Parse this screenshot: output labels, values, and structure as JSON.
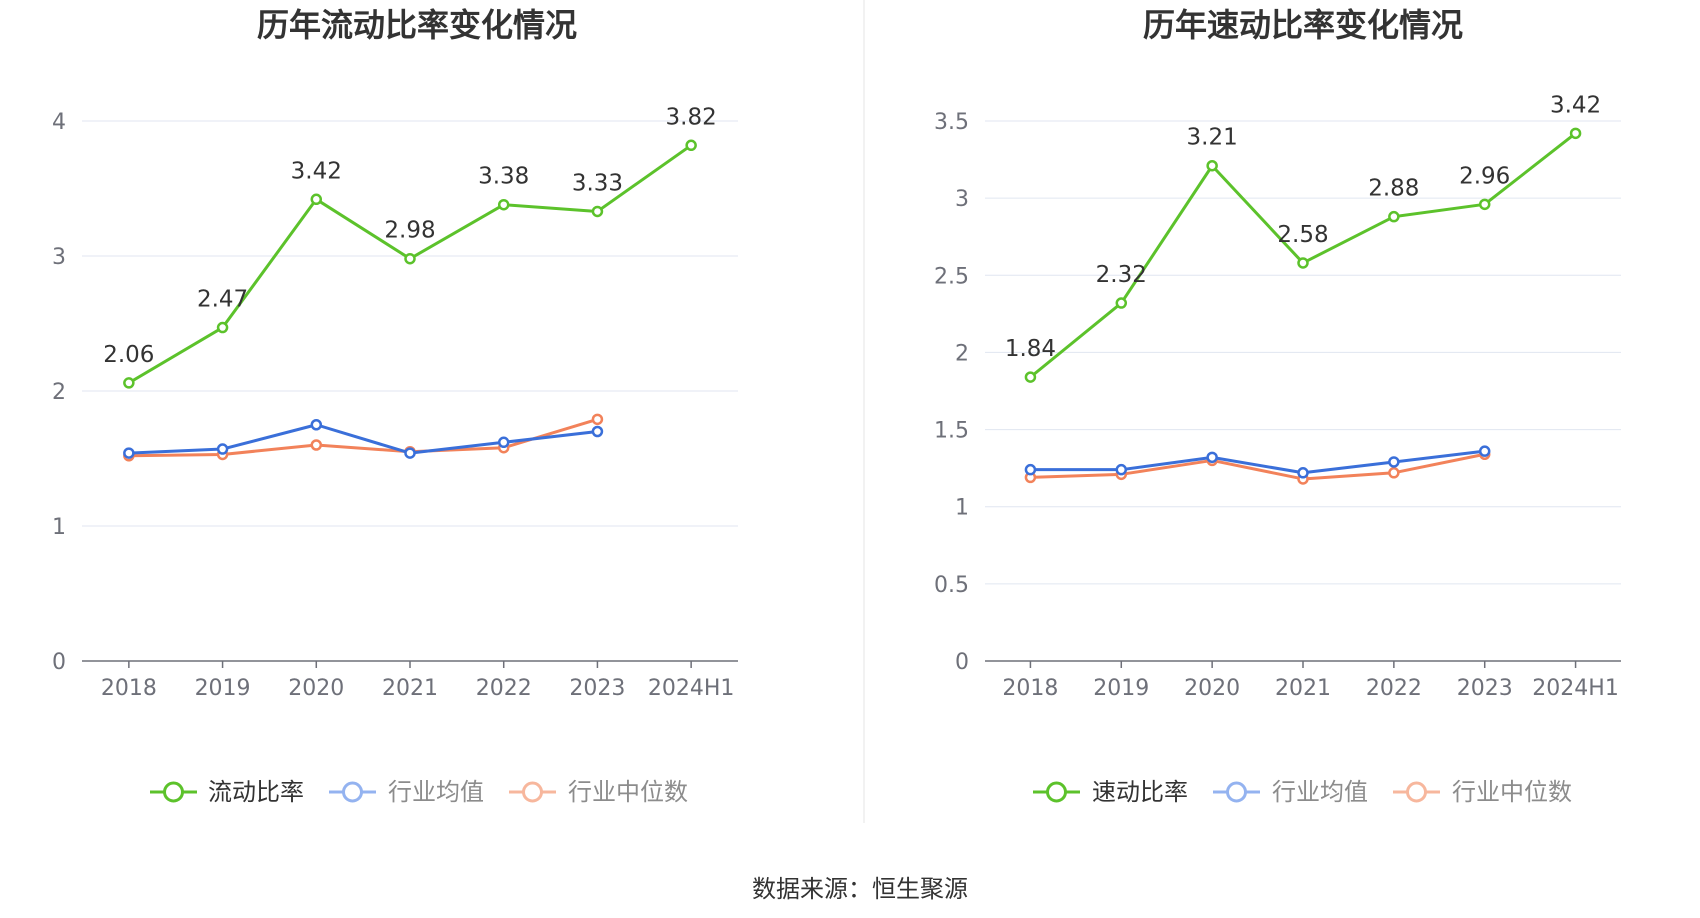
{
  "source": "数据来源：恒生聚源",
  "colors": {
    "main": "#5cc22b",
    "avg": "#3a6fd9",
    "median": "#f2825a",
    "avg_legend": "#94b3f0",
    "median_legend": "#f7b79d",
    "grid": "#e0e6f1",
    "axis": "#6e7079",
    "divider": "#eeeeee"
  },
  "chart_data": [
    {
      "type": "line",
      "title": "历年流动比率变化情况",
      "xlabel": "",
      "ylabel": "",
      "categories": [
        "2018",
        "2019",
        "2020",
        "2021",
        "2022",
        "2023",
        "2024H1"
      ],
      "yticks": [
        0,
        1,
        2,
        3,
        4
      ],
      "ylim": [
        0,
        4
      ],
      "grid": true,
      "legend": "bottom-center",
      "series": [
        {
          "name": "流动比率",
          "color": "#5cc22b",
          "labels": true,
          "values": [
            2.06,
            2.47,
            3.42,
            2.98,
            3.38,
            3.33,
            3.82
          ]
        },
        {
          "name": "行业均值",
          "color": "#3a6fd9",
          "labels": false,
          "values": [
            1.54,
            1.57,
            1.75,
            1.54,
            1.62,
            1.7,
            null
          ]
        },
        {
          "name": "行业中位数",
          "color": "#f2825a",
          "labels": false,
          "values": [
            1.52,
            1.53,
            1.6,
            1.55,
            1.58,
            1.79,
            null
          ]
        }
      ]
    },
    {
      "type": "line",
      "title": "历年速动比率变化情况",
      "xlabel": "",
      "ylabel": "",
      "categories": [
        "2018",
        "2019",
        "2020",
        "2021",
        "2022",
        "2023",
        "2024H1"
      ],
      "yticks": [
        0,
        0.5,
        1,
        1.5,
        2,
        2.5,
        3,
        3.5
      ],
      "ylim": [
        0,
        3.5
      ],
      "grid": true,
      "legend": "bottom-center",
      "series": [
        {
          "name": "速动比率",
          "color": "#5cc22b",
          "labels": true,
          "values": [
            1.84,
            2.32,
            3.21,
            2.58,
            2.88,
            2.96,
            3.42
          ]
        },
        {
          "name": "行业均值",
          "color": "#3a6fd9",
          "labels": false,
          "values": [
            1.24,
            1.24,
            1.32,
            1.22,
            1.29,
            1.36,
            null
          ]
        },
        {
          "name": "行业中位数",
          "color": "#f2825a",
          "labels": false,
          "values": [
            1.19,
            1.21,
            1.3,
            1.18,
            1.22,
            1.34,
            null
          ]
        }
      ]
    }
  ]
}
